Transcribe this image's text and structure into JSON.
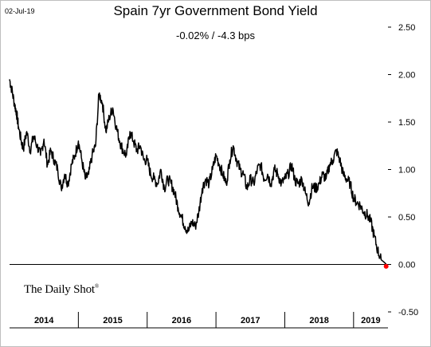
{
  "header": {
    "date": "02-Jul-19",
    "title": "Spain 7yr Government Bond Yield",
    "subtitle": "-0.02%  /  -4.3 bps"
  },
  "source": {
    "text": "The Daily Shot",
    "mark": "®"
  },
  "colors": {
    "line": "#000000",
    "last_point": "#ff0000",
    "axis": "#000000",
    "frame": "#bfbfbf"
  },
  "chart_data": {
    "type": "line",
    "title": "Spain 7yr Government Bond Yield",
    "subtitle": "-0.02%  /  -4.3 bps",
    "xlabel": "",
    "ylabel": "",
    "ylim": [
      -0.5,
      2.5
    ],
    "xlim": [
      2014.0,
      2019.5
    ],
    "y_ticks": [
      "2.50",
      "2.00",
      "1.50",
      "1.00",
      "0.50",
      "0.00",
      "-0.50"
    ],
    "y_tick_values": [
      2.5,
      2.0,
      1.5,
      1.0,
      0.5,
      0.0,
      -0.5
    ],
    "x_ticks": [
      "2014",
      "2015",
      "2016",
      "2017",
      "2018",
      "2019"
    ],
    "x_tick_centers": [
      2014.5,
      2015.5,
      2016.5,
      2017.5,
      2018.5,
      2019.25
    ],
    "x_boundaries": [
      2015.0,
      2016.0,
      2017.0,
      2018.0,
      2019.0
    ],
    "zero_line": true,
    "grid": false,
    "last_value": -0.02,
    "series": [
      {
        "x": [
          2014.0,
          2014.03,
          2014.07,
          2014.1,
          2014.13,
          2014.17,
          2014.2,
          2014.25,
          2014.3,
          2014.35,
          2014.4,
          2014.45,
          2014.5,
          2014.55,
          2014.6,
          2014.65,
          2014.7,
          2014.75,
          2014.8,
          2014.85,
          2014.9,
          2014.95,
          2015.0,
          2015.05,
          2015.1,
          2015.15,
          2015.2,
          2015.25,
          2015.3,
          2015.35,
          2015.4,
          2015.45,
          2015.5,
          2015.55,
          2015.6,
          2015.65,
          2015.7,
          2015.75,
          2015.8,
          2015.85,
          2015.9,
          2015.95,
          2016.0,
          2016.05,
          2016.1,
          2016.15,
          2016.2,
          2016.25,
          2016.3,
          2016.35,
          2016.4,
          2016.45,
          2016.5,
          2016.55,
          2016.6,
          2016.65,
          2016.7,
          2016.75,
          2016.8,
          2016.85,
          2016.9,
          2016.95,
          2017.0,
          2017.05,
          2017.1,
          2017.15,
          2017.2,
          2017.25,
          2017.3,
          2017.35,
          2017.4,
          2017.45,
          2017.5,
          2017.55,
          2017.6,
          2017.65,
          2017.7,
          2017.75,
          2017.8,
          2017.85,
          2017.9,
          2017.95,
          2018.0,
          2018.05,
          2018.1,
          2018.15,
          2018.2,
          2018.25,
          2018.3,
          2018.35,
          2018.4,
          2018.45,
          2018.5,
          2018.55,
          2018.6,
          2018.65,
          2018.7,
          2018.75,
          2018.8,
          2018.85,
          2018.9,
          2018.95,
          2019.0,
          2019.05,
          2019.1,
          2019.15,
          2019.2,
          2019.25,
          2019.3,
          2019.35,
          2019.4,
          2019.45,
          2019.5
        ],
        "values": [
          1.95,
          1.85,
          1.7,
          1.6,
          1.45,
          1.3,
          1.22,
          1.4,
          1.2,
          1.35,
          1.25,
          1.15,
          1.32,
          1.05,
          1.2,
          1.1,
          1.0,
          0.8,
          0.95,
          0.85,
          1.05,
          1.15,
          1.3,
          1.1,
          0.9,
          0.95,
          1.15,
          1.25,
          1.8,
          1.7,
          1.4,
          1.55,
          1.65,
          1.45,
          1.3,
          1.2,
          1.15,
          1.4,
          1.3,
          1.2,
          1.25,
          1.1,
          1.1,
          0.95,
          0.9,
          0.85,
          1.0,
          0.8,
          0.9,
          0.85,
          0.75,
          0.6,
          0.5,
          0.4,
          0.35,
          0.45,
          0.4,
          0.55,
          0.8,
          0.9,
          0.85,
          1.0,
          1.15,
          1.05,
          0.95,
          0.85,
          1.1,
          1.25,
          1.1,
          1.0,
          0.95,
          0.8,
          0.9,
          0.85,
          1.0,
          1.05,
          0.9,
          0.95,
          0.85,
          1.0,
          0.95,
          0.85,
          0.9,
          0.95,
          1.05,
          0.88,
          0.85,
          0.9,
          0.75,
          0.65,
          0.82,
          0.8,
          0.85,
          0.95,
          0.9,
          1.05,
          1.1,
          1.2,
          1.1,
          0.95,
          0.9,
          0.85,
          0.7,
          0.65,
          0.62,
          0.55,
          0.52,
          0.45,
          0.3,
          0.15,
          0.05,
          0.02,
          -0.02
        ]
      }
    ]
  }
}
